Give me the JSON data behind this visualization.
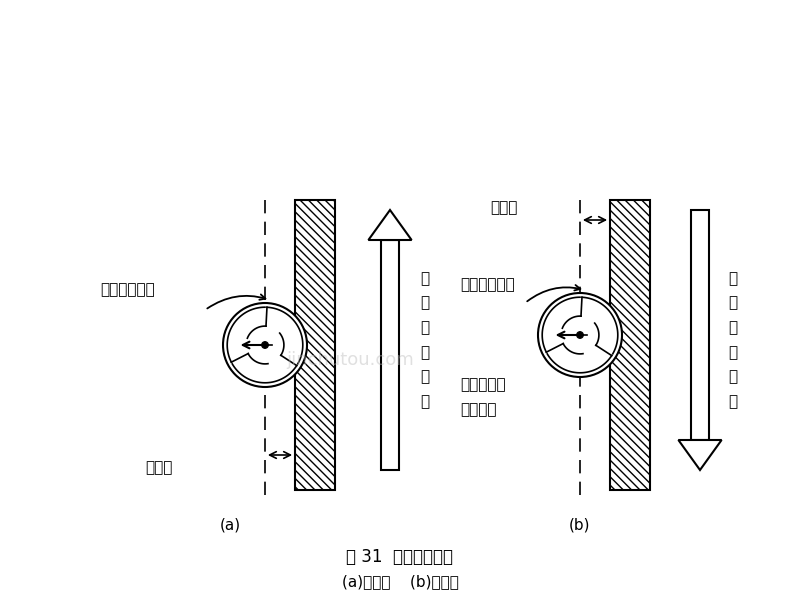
{
  "bg_color": "#ffffff",
  "fig_title": "图 31  刀具补偿方向",
  "fig_subtitle": "(a)左刀补    (b)右刀补",
  "label_a": "(a)",
  "label_b": "(b)",
  "text_a_rotation": "刀具旋转方向",
  "text_a_advance": "刀\n具\n前\n进\n方\n向",
  "text_a_offset": "补偿量",
  "text_b_rotation": "刀具旋转方向",
  "text_b_advance": "刀\n具\n前\n进\n方\n向",
  "text_b_offset": "补偿量",
  "text_b_side_1": "在前进方向",
  "text_b_side_2": "右侧补偿",
  "font_size": 10,
  "title_font_size": 11,
  "watermark": "jinchutou.com"
}
